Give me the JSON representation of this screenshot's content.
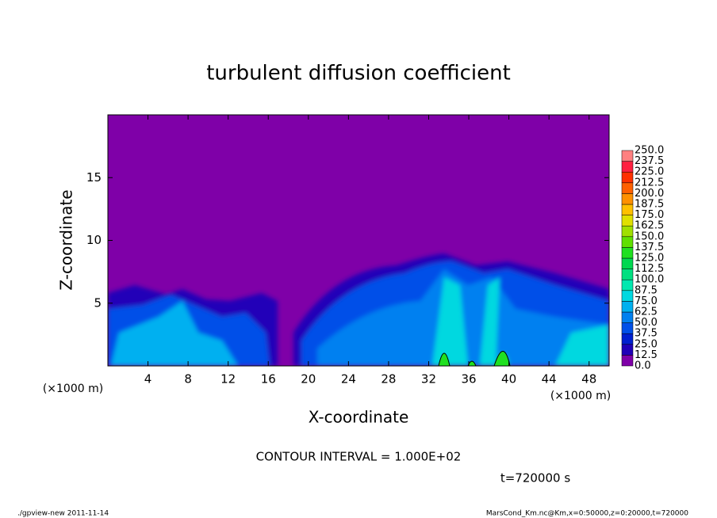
{
  "chart_data": {
    "type": "contour",
    "title": "turbulent diffusion coefficient",
    "x_label": "X-coordinate",
    "y_label": "Z-coordinate",
    "x_unit": "(×1000 m)",
    "y_unit": "(×1000 m)",
    "xlim": [
      0,
      50
    ],
    "xticks": [
      4,
      8,
      12,
      16,
      20,
      24,
      28,
      32,
      36,
      40,
      44,
      48
    ],
    "ylim": [
      0,
      20
    ],
    "yticks": [
      5,
      10,
      15
    ],
    "colorbar": {
      "ticks": [
        {
          "value": 0,
          "label": "0.0"
        },
        {
          "value": 12.5,
          "label": "12.5"
        },
        {
          "value": 25,
          "label": "25.0"
        },
        {
          "value": 37.5,
          "label": "37.5"
        },
        {
          "value": 50,
          "label": "50.0"
        },
        {
          "value": 62.5,
          "label": "62.5"
        },
        {
          "value": 75,
          "label": "75.0"
        },
        {
          "value": 87.5,
          "label": "87.5"
        },
        {
          "value": 100,
          "label": "100.0"
        },
        {
          "value": 112.5,
          "label": "112.5"
        },
        {
          "value": 125,
          "label": "125.0"
        },
        {
          "value": 137.5,
          "label": "137.5"
        },
        {
          "value": 150,
          "label": "150.0"
        },
        {
          "value": 162.5,
          "label": "162.5"
        },
        {
          "value": 175,
          "label": "175.0"
        },
        {
          "value": 187.5,
          "label": "187.5"
        },
        {
          "value": 200,
          "label": "200.0"
        },
        {
          "value": 212.5,
          "label": "212.5"
        },
        {
          "value": 225,
          "label": "225.0"
        },
        {
          "value": 237.5,
          "label": "237.5"
        },
        {
          "value": 250,
          "label": "250.0"
        }
      ],
      "colors": [
        "#7f00a8",
        "#2000b8",
        "#0020d0",
        "#0050e8",
        "#0080f0",
        "#00b0f0",
        "#00d8e0",
        "#00e8b0",
        "#00e080",
        "#00d850",
        "#20e020",
        "#60e000",
        "#a0e000",
        "#e0e000",
        "#ffc000",
        "#ff9000",
        "#ff6000",
        "#ff3000",
        "#ff2040",
        "#ff8080"
      ]
    },
    "contour_note": "CONTOUR INTERVAL = 1.000E+02",
    "time_label": "t=720000 s",
    "footer_left": "./gpview-new  2011-11-14",
    "footer_right": "MarsCond_Km.nc@Km,x=0:50000,z=0:20000,t=720000"
  }
}
